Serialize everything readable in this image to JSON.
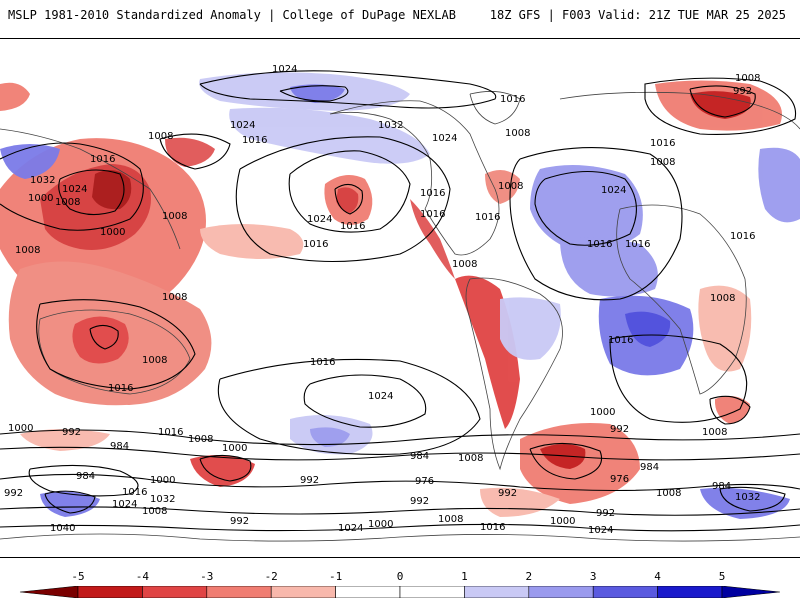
{
  "header": {
    "title": "MSLP 1981-2010 Standardized Anomaly | College of DuPage NEXLAB",
    "run_info": "18Z GFS | F003 Valid: 21Z TUE MAR 25 2025"
  },
  "colorbar": {
    "ticks": [
      "-5",
      "-4",
      "-3",
      "-2",
      "-1",
      "0",
      "1",
      "2",
      "3",
      "4",
      "5"
    ],
    "colors": [
      "#7a0000",
      "#c21a1a",
      "#e04444",
      "#f07d72",
      "#f8b8ac",
      "#ffffff",
      "#ffffff",
      "#c9c9f5",
      "#9a9aee",
      "#5a5ae0",
      "#1a1acc",
      "#0000a0"
    ]
  },
  "map": {
    "contour_labels": [
      "1024",
      "1008",
      "992",
      "1016",
      "1032",
      "1024",
      "1008",
      "1016",
      "1008",
      "1024",
      "1016",
      "1008",
      "1016",
      "1016",
      "1000",
      "1032",
      "1024",
      "1008",
      "1000",
      "1008",
      "1016",
      "1024",
      "1016",
      "1016",
      "1008",
      "1016",
      "1024",
      "1008",
      "1016",
      "1008",
      "1008",
      "1016",
      "1016",
      "1008",
      "1016",
      "1024",
      "1016",
      "1016",
      "1000",
      "992",
      "1008",
      "1000",
      "992",
      "984",
      "1016",
      "1008",
      "1000",
      "984",
      "976",
      "992",
      "984",
      "976",
      "992",
      "1000",
      "1032",
      "1016",
      "1024",
      "992",
      "1008",
      "992",
      "984",
      "1040",
      "1008",
      "1024",
      "1000",
      "1008",
      "1016",
      "1000",
      "992",
      "1024",
      "1008",
      "984",
      "1032",
      "992",
      "1008"
    ]
  },
  "colors": {
    "negative_strong": "#b41414",
    "negative": "#ef7a6e",
    "negative_weak": "#f8b7ab",
    "positive_weak": "#c7c7f3",
    "positive": "#8d8deb",
    "positive_strong": "#4a4adc",
    "contour": "#000000",
    "coastline": "#444444"
  }
}
